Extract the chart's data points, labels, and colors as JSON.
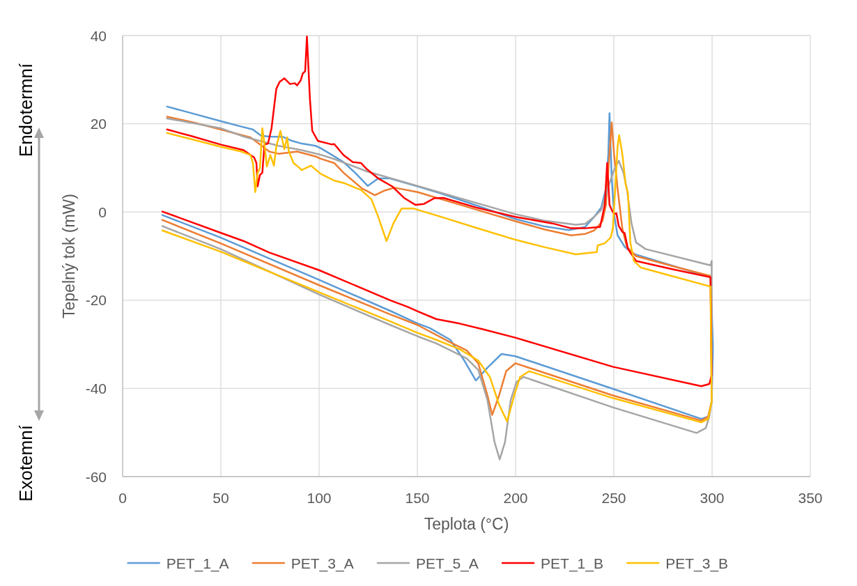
{
  "chart_data": {
    "type": "line",
    "xlabel": "Teplota (°C)",
    "ylabel": "Tepelný tok (mW)",
    "annotations": [
      "Endotermní",
      "Exotemní"
    ],
    "xlim": [
      0,
      350
    ],
    "xticks": [
      0,
      50,
      100,
      150,
      200,
      250,
      300,
      350
    ],
    "ylim": [
      -60,
      40
    ],
    "yticks": [
      -60,
      -40,
      -20,
      0,
      20,
      40
    ],
    "grid": true,
    "legend": "bottom",
    "series": [
      {
        "name": "PET_1_A",
        "color": "#5b9bd5",
        "x": [
          22.6,
          35,
          49.8,
          60,
          66.2,
          70.5,
          74.6,
          81.7,
          86.4,
          91.2,
          98.2,
          100.6,
          107.7,
          112.4,
          118.3,
          124.8,
          130.1,
          136,
          150.2,
          162,
          180,
          199.9,
          215,
          227.1,
          235.4,
          240,
          243.6,
          246,
          247.2,
          247.8,
          248.9,
          250.1,
          251.9,
          255.5,
          260.2,
          280,
          299.2,
          300.4,
          300.4,
          299.8,
          298,
          294.5,
          249.5,
          199.9,
          192.8,
          185.7,
          179.8,
          173.9,
          166.8,
          156.2,
          150.2,
          136.1,
          100,
          49.8,
          20.2
        ],
        "values": [
          23.9,
          22.4,
          20.6,
          19.4,
          18.7,
          17.3,
          17.1,
          17.0,
          16.1,
          15.5,
          15.0,
          14.5,
          12.6,
          11.3,
          8.9,
          5.9,
          7.6,
          7.6,
          5.8,
          4.2,
          1.5,
          -1.6,
          -3.3,
          -4.1,
          -3.4,
          -1.1,
          1.0,
          5.3,
          13.2,
          22.4,
          7.9,
          -0.5,
          -5.3,
          -7.9,
          -9.5,
          -12.2,
          -14.8,
          -29.6,
          -31.4,
          -43,
          -46.4,
          -46.9,
          -40.1,
          -32.7,
          -32.2,
          -35.3,
          -38.2,
          -33.7,
          -29.0,
          -26.3,
          -25.3,
          -22.4,
          -15.4,
          -5.8,
          -0.7
        ]
      },
      {
        "name": "PET_3_A",
        "color": "#ed7d31",
        "x": [
          22.6,
          35,
          49.8,
          65.1,
          69.9,
          74.6,
          79.3,
          88.8,
          98.2,
          100.6,
          107.7,
          112.4,
          121.9,
          128.4,
          133,
          138.4,
          150.2,
          175,
          199.9,
          215,
          228.3,
          235.3,
          240,
          244.2,
          246,
          247.8,
          248.9,
          250.1,
          251.9,
          254.3,
          256.6,
          261.3,
          280,
          299.2,
          299.8,
          298,
          294.5,
          249.5,
          199.9,
          195.2,
          191.6,
          188.1,
          185.7,
          181,
          175.1,
          165.6,
          150,
          136.1,
          100,
          49.8,
          20.2
        ],
        "values": [
          21.6,
          20.4,
          18.7,
          16.9,
          15.3,
          13.7,
          13.2,
          13.7,
          12.6,
          12.1,
          11.1,
          8.9,
          5.3,
          3.8,
          4.8,
          5.5,
          4.5,
          1.2,
          -2.1,
          -4.0,
          -5.3,
          -5.0,
          -4.2,
          -2.1,
          1.6,
          13.2,
          20.3,
          13.2,
          5.3,
          -3.7,
          -7.9,
          -10.0,
          -12.3,
          -14.5,
          -43,
          -46.4,
          -47.3,
          -41.6,
          -34.3,
          -36.1,
          -41.6,
          -46.0,
          -41.6,
          -34.3,
          -31.4,
          -29.3,
          -25.6,
          -23.2,
          -16.6,
          -7.1,
          -1.8
        ]
      },
      {
        "name": "PET_5_A",
        "color": "#a5a5a5",
        "x": [
          22.6,
          35,
          49.8,
          61.6,
          69.9,
          79.3,
          91.2,
          100.6,
          107.7,
          124.3,
          150.2,
          175,
          199.9,
          215,
          230.6,
          235.4,
          240,
          243.6,
          247.2,
          250.1,
          252.5,
          254.9,
          256.6,
          259,
          261.3,
          266.1,
          299.2,
          299.8,
          299.8,
          298.6,
          296.8,
          292.1,
          249.5,
          204,
          200.5,
          197.5,
          194.6,
          191.9,
          189.3,
          185.7,
          181,
          175.1,
          159.7,
          150.2,
          136.1,
          100,
          49.8,
          20.2
        ],
        "values": [
          21.2,
          20.2,
          19.0,
          17.1,
          16.1,
          15.0,
          14.0,
          13.0,
          12.0,
          9.2,
          5.9,
          2.7,
          -0.5,
          -2.0,
          -2.9,
          -2.7,
          -1.1,
          0.5,
          5.8,
          9.5,
          11.6,
          8.9,
          5.3,
          -2.6,
          -6.9,
          -8.4,
          -12.1,
          -11.1,
          -43,
          -46.4,
          -49.0,
          -50.1,
          -44.3,
          -37.4,
          -38.5,
          -42.7,
          -52.2,
          -56.1,
          -52.2,
          -42.7,
          -35.8,
          -33.2,
          -29.8,
          -28.2,
          -25.6,
          -18.7,
          -8.4,
          -3.2
        ]
      },
      {
        "name": "PET_1_B",
        "color": "#ff0000",
        "x": [
          22.6,
          35,
          49.8,
          61.6,
          65.1,
          66.9,
          68.1,
          68.7,
          69.9,
          71.1,
          72.2,
          74,
          75.8,
          78.2,
          79.9,
          82.3,
          85.2,
          87.6,
          88.8,
          90.6,
          91.7,
          92.9,
          93.8,
          95.3,
          96.5,
          99.4,
          106.5,
          107.7,
          112.4,
          117.2,
          121.3,
          124.3,
          130.1,
          137.2,
          143.2,
          149.1,
          153.2,
          158.5,
          163.3,
          180,
          199.9,
          218.8,
          228.3,
          235.3,
          243,
          245.4,
          246.6,
          247.8,
          248.9,
          250.1,
          251.3,
          252.5,
          254.3,
          255.5,
          257.2,
          261.3,
          280,
          299.2,
          299.8,
          298.6,
          294.5,
          249.5,
          199.9,
          183.3,
          171.5,
          159.7,
          150,
          145.5,
          136.1,
          100,
          74.6,
          61.6,
          49.8,
          20.2
        ],
        "values": [
          18.7,
          17.2,
          15.3,
          14.0,
          12.9,
          12.4,
          11.1,
          5.8,
          8.4,
          8.9,
          15.3,
          15.5,
          19.0,
          27.9,
          29.5,
          30.3,
          29.0,
          29.2,
          28.7,
          29.8,
          31.4,
          31.9,
          39.8,
          25.8,
          18.4,
          16.1,
          15.3,
          15.4,
          12.9,
          11.3,
          11.1,
          9.7,
          7.6,
          5.8,
          3.2,
          1.6,
          1.8,
          3.1,
          3.2,
          1.0,
          -1.1,
          -2.6,
          -3.7,
          -3.7,
          -3.4,
          1.6,
          11.1,
          1.6,
          0.5,
          -0.5,
          -0.3,
          -3.2,
          -4.5,
          -4.8,
          -8.4,
          -11.1,
          -13.0,
          -14.8,
          -37,
          -39.0,
          -39.5,
          -35.1,
          -28.5,
          -26.6,
          -25.3,
          -24.3,
          -22.5,
          -21.6,
          -20.0,
          -13.2,
          -9.2,
          -6.6,
          -4.7,
          0.1
        ]
      },
      {
        "name": "PET_3_B",
        "color": "#ffc000",
        "x": [
          22.6,
          35,
          49.8,
          60.4,
          65.1,
          66.3,
          67.5,
          68.7,
          69.9,
          71.1,
          72.2,
          73.4,
          75.2,
          77,
          78.2,
          80.3,
          82.3,
          83.7,
          84.6,
          87,
          90,
          91.1,
          95.9,
          100.6,
          107.7,
          112.4,
          121.3,
          126.6,
          130.1,
          134.3,
          137.8,
          142,
          147.9,
          162,
          180,
          199.9,
          215,
          230.6,
          241.3,
          241.8,
          245.4,
          248.4,
          249.5,
          250.7,
          251.9,
          252.7,
          254.3,
          256,
          257.2,
          258.4,
          260.2,
          263.7,
          299.2,
          299.8,
          298,
          294.5,
          249.5,
          207,
          202.3,
          199.3,
          195.7,
          191.6,
          186.9,
          181,
          171.5,
          159.7,
          150,
          136.1,
          100,
          49.8,
          20.2
        ],
        "values": [
          17.9,
          16.5,
          14.8,
          13.7,
          12.9,
          11.1,
          4.5,
          8.9,
          10.0,
          19.0,
          15.3,
          10.3,
          12.9,
          10.5,
          14.8,
          18.4,
          14.2,
          16.9,
          13.7,
          11.1,
          10.0,
          9.5,
          10.5,
          8.7,
          7.1,
          6.6,
          5.0,
          2.9,
          -1.1,
          -6.6,
          -2.6,
          0.8,
          0.8,
          -1.1,
          -3.6,
          -6.3,
          -8.0,
          -9.6,
          -9.1,
          -7.6,
          -7.1,
          -5.8,
          -3.7,
          5.3,
          14.8,
          17.4,
          13.2,
          6.3,
          4.2,
          -6.9,
          -11.1,
          -12.6,
          -16.9,
          -43,
          -46.9,
          -47.7,
          -42.2,
          -36.1,
          -37.4,
          -41.6,
          -47.5,
          -43.7,
          -37.4,
          -33.7,
          -31.1,
          -29.0,
          -27.4,
          -24.8,
          -18.2,
          -9.0,
          -4.2
        ]
      }
    ]
  }
}
